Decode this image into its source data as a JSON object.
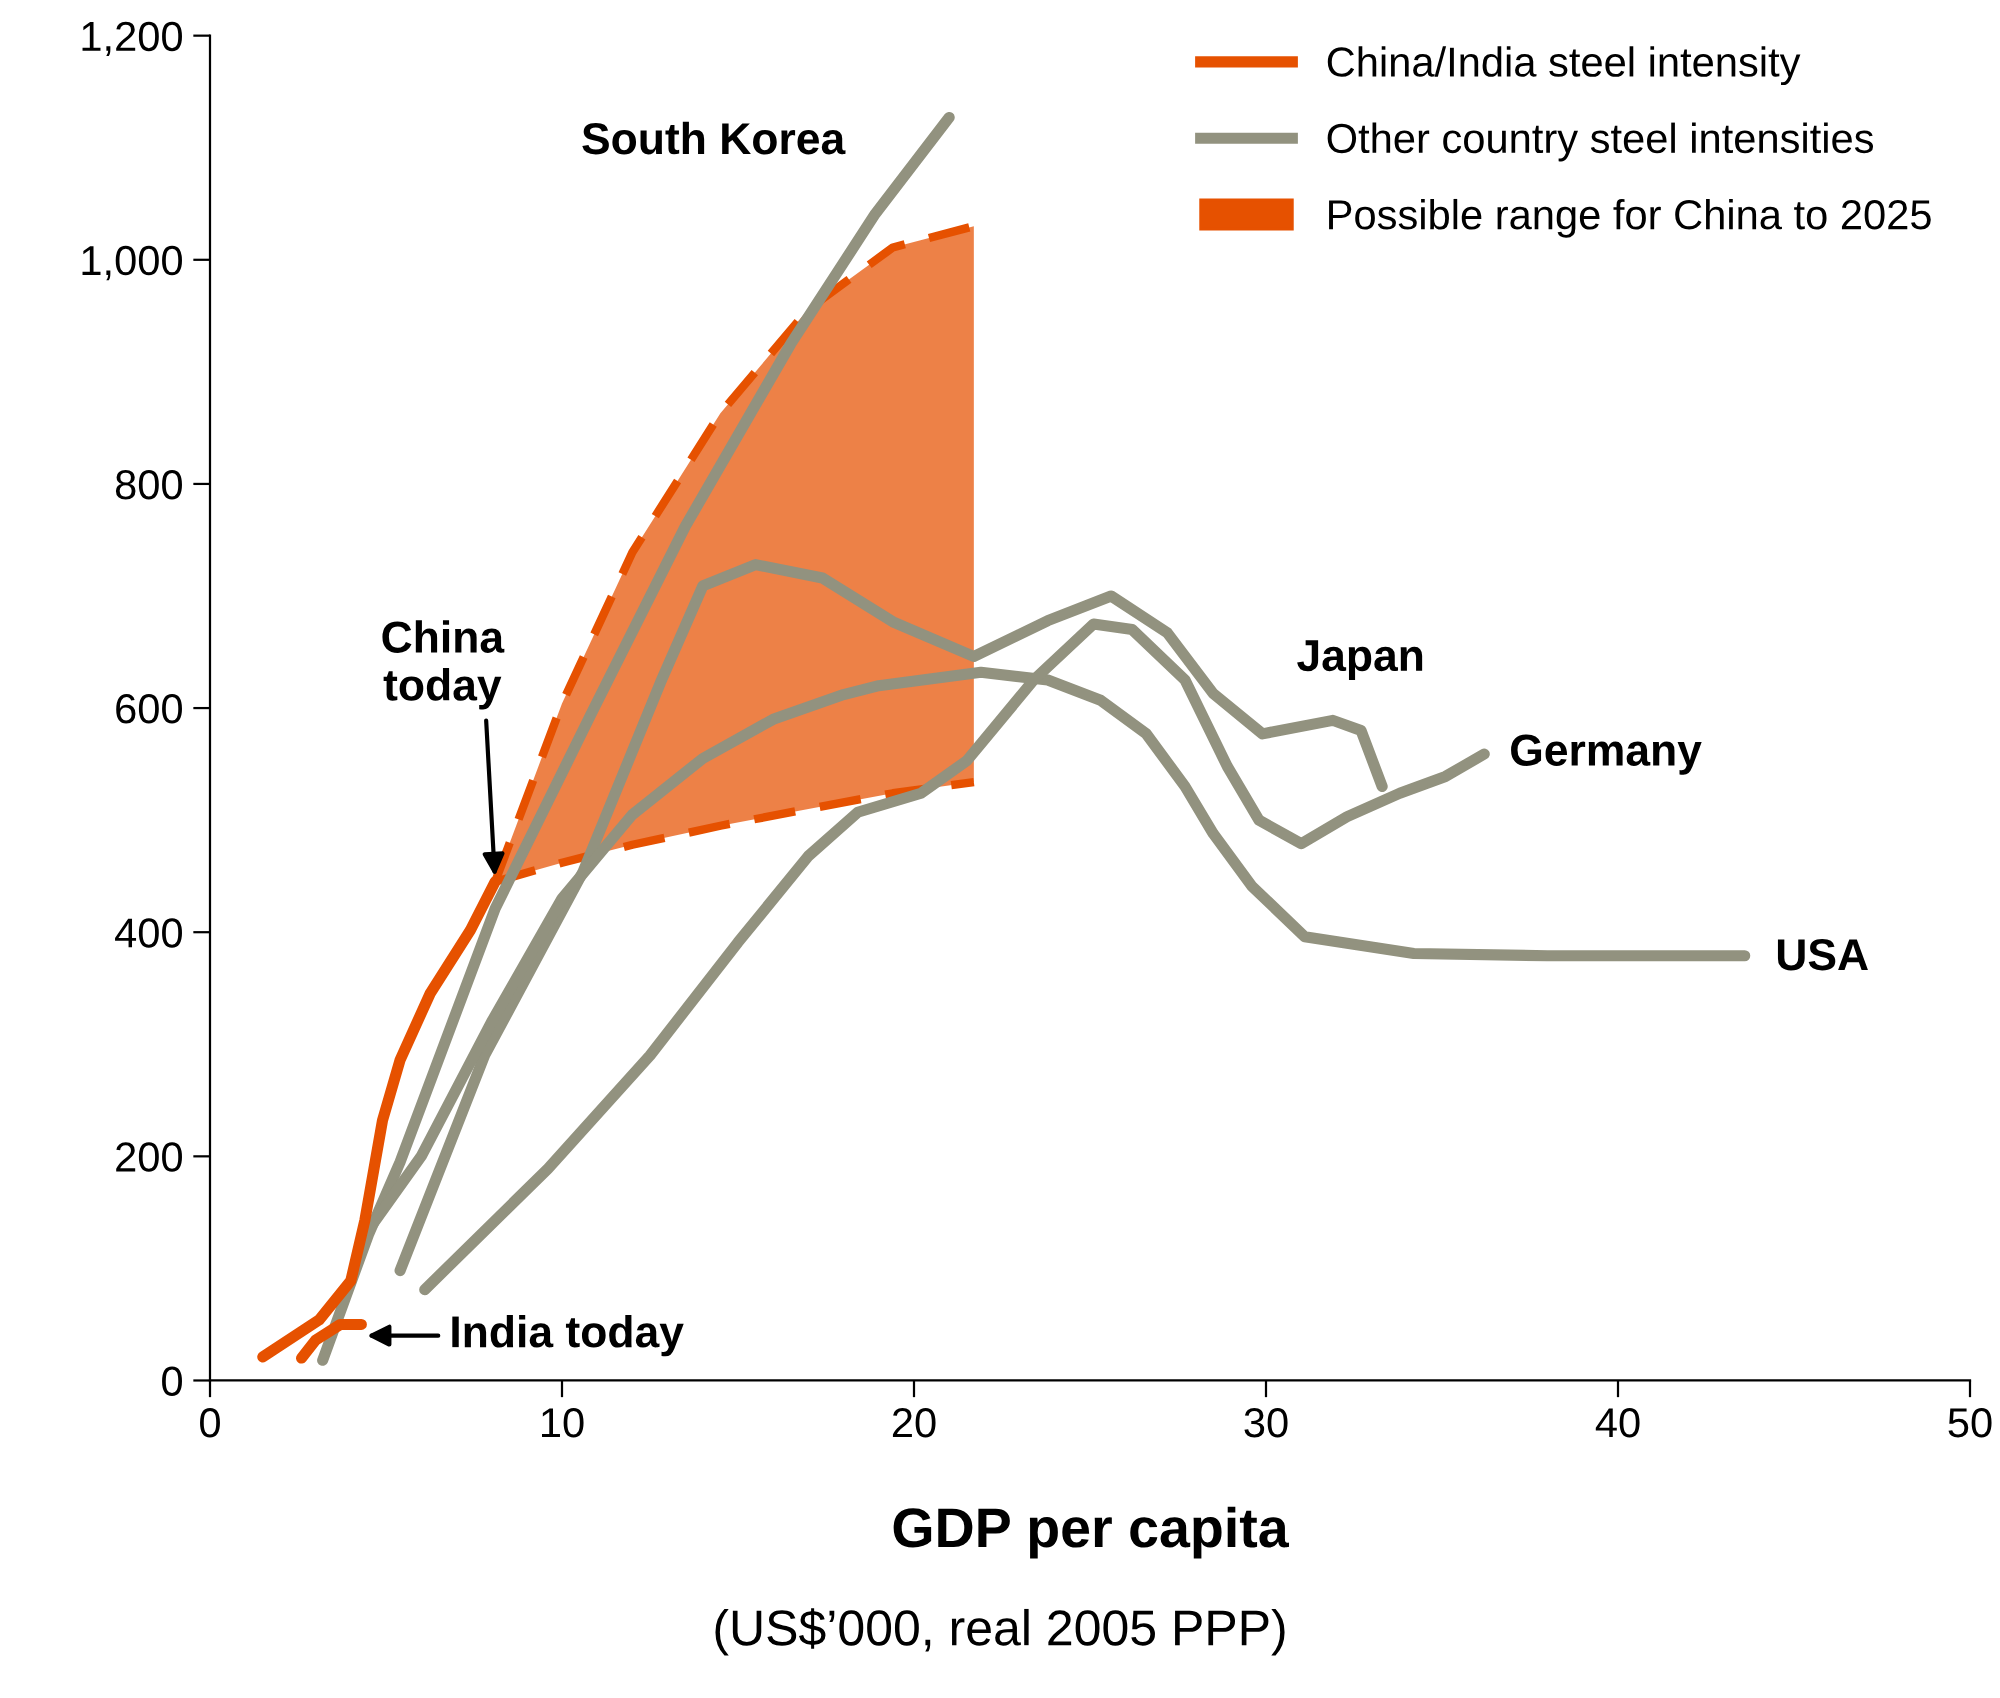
{
  "chart_data": {
    "type": "line",
    "xlabel": "GDP per capita",
    "xlim": [
      0,
      50
    ],
    "xticks": [
      0,
      10,
      20,
      30,
      40,
      50
    ],
    "ylim": [
      0,
      1200
    ],
    "yticks": [
      0,
      200,
      400,
      600,
      800,
      {
        "value": 1000,
        "label": "1,000"
      },
      {
        "value": 1200,
        "label": "1,200"
      }
    ],
    "grid": false,
    "legend": "top right",
    "marker": "none",
    "series": [
      {
        "name": "Possible range for China to 2025",
        "color": "#e65100",
        "line_style": "dashed",
        "x": [
          8.1,
          10,
          12,
          14.5,
          17,
          19.4,
          21.7
        ],
        "lower": [
          445,
          462,
          478,
          495,
          510,
          524,
          534
        ],
        "upper": [
          445,
          604,
          739,
          863,
          956,
          1011,
          1030
        ],
        "values": [
          445,
          604,
          739,
          863,
          956,
          1011,
          1030
        ]
      },
      {
        "type": "line",
        "color": "#e65100",
        "line_style": "dashed",
        "x": [
          8.1,
          10,
          12,
          14.5,
          17,
          19.4,
          21.7
        ],
        "values": [
          445,
          462,
          478,
          495,
          510,
          524,
          534
        ]
      },
      {
        "name": "Other country steel intensities",
        "color": "#92927f",
        "x": [
          3.2,
          4.5,
          5.4,
          8.1,
          10.8,
          13.5,
          16.5,
          18.9,
          21.0
        ],
        "values": [
          18,
          130,
          195,
          421,
          593,
          762,
          925,
          1041,
          1127
        ]
      },
      {
        "color": "#92927f",
        "x": [
          5.4,
          7.8,
          10.6,
          12.8,
          14.0,
          15.5,
          17.4,
          19.4,
          21.7,
          23.8,
          25.6,
          27.2,
          28.5,
          29.9,
          31.9,
          32.7,
          33.3
        ],
        "values": [
          98,
          290,
          454,
          623,
          709,
          728,
          716,
          677,
          646,
          678,
          700,
          667,
          613,
          577,
          589,
          580,
          530
        ]
      },
      {
        "color": "#92927f",
        "x": [
          4.5,
          6,
          8,
          10,
          12,
          14,
          16,
          18,
          19.0,
          21.9,
          23.8,
          25.3,
          26.6,
          27.7,
          28.5,
          29.6,
          31.1,
          34.2,
          38.0,
          43.6
        ],
        "values": [
          134,
          200,
          320,
          430,
          505,
          555,
          590,
          612,
          620,
          632,
          625,
          607,
          577,
          530,
          488,
          441,
          396,
          381,
          379,
          379
        ]
      },
      {
        "color": "#92927f",
        "x": [
          6.1,
          9.6,
          12.5,
          15.0,
          17.0,
          18.4,
          20.2,
          21.5,
          23.4,
          25.1,
          26.2,
          27.7,
          28.9,
          29.8,
          31.0,
          32.3,
          33.8,
          35.1,
          36.2
        ],
        "values": [
          81,
          189,
          290,
          391,
          468,
          507,
          524,
          553,
          625,
          675,
          670,
          625,
          548,
          500,
          479,
          503,
          524,
          539,
          559
        ]
      },
      {
        "name": "China/India steel intensity",
        "color": "#e65100",
        "x": [
          1.5,
          3.1,
          4.0,
          4.4,
          4.9,
          5.4,
          6.25,
          7.4,
          8.1
        ],
        "values": [
          21,
          54,
          89,
          143,
          232,
          286,
          345,
          402,
          445
        ]
      },
      {
        "color": "#e65100",
        "x": [
          2.6,
          3.0,
          3.7,
          4.3
        ],
        "values": [
          20,
          36,
          50,
          50
        ]
      }
    ],
    "annotations": [
      {
        "text": "China\ntoday",
        "x": 8.1,
        "y": 445
      },
      {
        "text": "India today",
        "x": 4.3,
        "y": 50
      },
      {
        "text": "South Korea",
        "x": 21.0,
        "y": 1127
      },
      {
        "text": "Japan",
        "x": 31.9,
        "y": 589
      },
      {
        "text": "Germany",
        "x": 36.2,
        "y": 559
      },
      {
        "text": "USA",
        "x": 43.6,
        "y": 379
      },
      "(US$’000, real 2005 PPP)"
    ]
  }
}
